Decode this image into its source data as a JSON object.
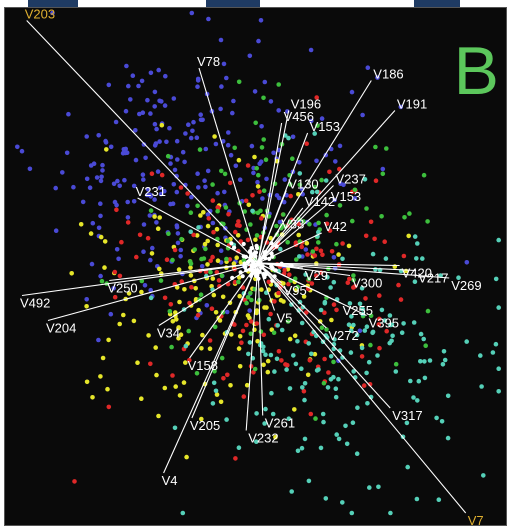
{
  "panel_letter": "B",
  "colors": {
    "background": "#0a0a0a",
    "panel_letter": "#5cc75c",
    "vector_line": "#ffffff",
    "vector_label": "#ffffff",
    "highlight_label": "#e0b030",
    "tab": "#1f3b63"
  },
  "chart_data": {
    "type": "scatter",
    "subtype": "biplot",
    "title": "",
    "xlabel": "",
    "ylabel": "",
    "grid": false,
    "legend": "none",
    "point_groups": [
      {
        "color": "#4a4ad6",
        "count": 260,
        "center": [
          -0.25,
          -0.35
        ],
        "spread": [
          0.32,
          0.28
        ]
      },
      {
        "color": "#e6e62a",
        "count": 180,
        "center": [
          -0.15,
          0.12
        ],
        "spread": [
          0.26,
          0.24
        ]
      },
      {
        "color": "#e02828",
        "count": 170,
        "center": [
          0.05,
          0.05
        ],
        "spread": [
          0.28,
          0.26
        ]
      },
      {
        "color": "#3dbf3d",
        "count": 140,
        "center": [
          0.05,
          -0.05
        ],
        "spread": [
          0.3,
          0.28
        ]
      },
      {
        "color": "#55d0b8",
        "count": 200,
        "center": [
          0.35,
          0.35
        ],
        "spread": [
          0.3,
          0.3
        ]
      }
    ],
    "vectors": [
      {
        "label": "V203",
        "end": [
          -0.98,
          -0.97
        ],
        "highlight": true
      },
      {
        "label": "V78",
        "end": [
          -0.25,
          -0.78
        ],
        "highlight": false
      },
      {
        "label": "V186",
        "end": [
          0.48,
          -0.73
        ],
        "highlight": false
      },
      {
        "label": "V191",
        "end": [
          0.58,
          -0.61
        ],
        "highlight": false
      },
      {
        "label": "V196",
        "end": [
          0.13,
          -0.61
        ],
        "highlight": false
      },
      {
        "label": "V153",
        "end": [
          0.21,
          -0.52
        ],
        "highlight": false
      },
      {
        "label": "V456",
        "end": [
          0.1,
          -0.56
        ],
        "highlight": false
      },
      {
        "label": "V237",
        "end": [
          0.32,
          -0.31
        ],
        "highlight": false
      },
      {
        "label": "V130",
        "end": [
          0.12,
          -0.29
        ],
        "highlight": false
      },
      {
        "label": "V153",
        "end": [
          0.3,
          -0.24
        ],
        "highlight": false
      },
      {
        "label": "V142",
        "end": [
          0.19,
          -0.22
        ],
        "highlight": false
      },
      {
        "label": "V42",
        "end": [
          0.27,
          -0.12
        ],
        "highlight": false
      },
      {
        "label": "V231",
        "end": [
          -0.51,
          -0.26
        ],
        "highlight": false
      },
      {
        "label": "V33",
        "end": [
          0.09,
          -0.13
        ],
        "highlight": false
      },
      {
        "label": "V420",
        "end": [
          0.6,
          0.01
        ],
        "highlight": false
      },
      {
        "label": "V217",
        "end": [
          0.67,
          0.03
        ],
        "highlight": false
      },
      {
        "label": "V269",
        "end": [
          0.81,
          0.06
        ],
        "highlight": false
      },
      {
        "label": "V300",
        "end": [
          0.39,
          0.05
        ],
        "highlight": false
      },
      {
        "label": "V29",
        "end": [
          0.19,
          0.02
        ],
        "highlight": false
      },
      {
        "label": "V95",
        "end": [
          0.1,
          0.08
        ],
        "highlight": false
      },
      {
        "label": "V250",
        "end": [
          -0.63,
          0.07
        ],
        "highlight": false
      },
      {
        "label": "V492",
        "end": [
          -1.0,
          0.13
        ],
        "highlight": false
      },
      {
        "label": "V204",
        "end": [
          -0.89,
          0.23
        ],
        "highlight": false
      },
      {
        "label": "V34",
        "end": [
          -0.42,
          0.25
        ],
        "highlight": false
      },
      {
        "label": "V255",
        "end": [
          0.35,
          0.16
        ],
        "highlight": false
      },
      {
        "label": "V395",
        "end": [
          0.46,
          0.21
        ],
        "highlight": false
      },
      {
        "label": "V272",
        "end": [
          0.29,
          0.26
        ],
        "highlight": false
      },
      {
        "label": "V5",
        "end": [
          0.07,
          0.19
        ],
        "highlight": false
      },
      {
        "label": "V158",
        "end": [
          -0.29,
          0.38
        ],
        "highlight": false
      },
      {
        "label": "V317",
        "end": [
          0.56,
          0.58
        ],
        "highlight": false
      },
      {
        "label": "V261",
        "end": [
          0.02,
          0.61
        ],
        "highlight": false
      },
      {
        "label": "V232",
        "end": [
          -0.05,
          0.67
        ],
        "highlight": false
      },
      {
        "label": "V205",
        "end": [
          -0.28,
          0.62
        ],
        "highlight": false
      },
      {
        "label": "V4",
        "end": [
          -0.4,
          0.84
        ],
        "highlight": false
      },
      {
        "label": "V7",
        "end": [
          0.88,
          1.0
        ],
        "highlight": true
      }
    ]
  }
}
